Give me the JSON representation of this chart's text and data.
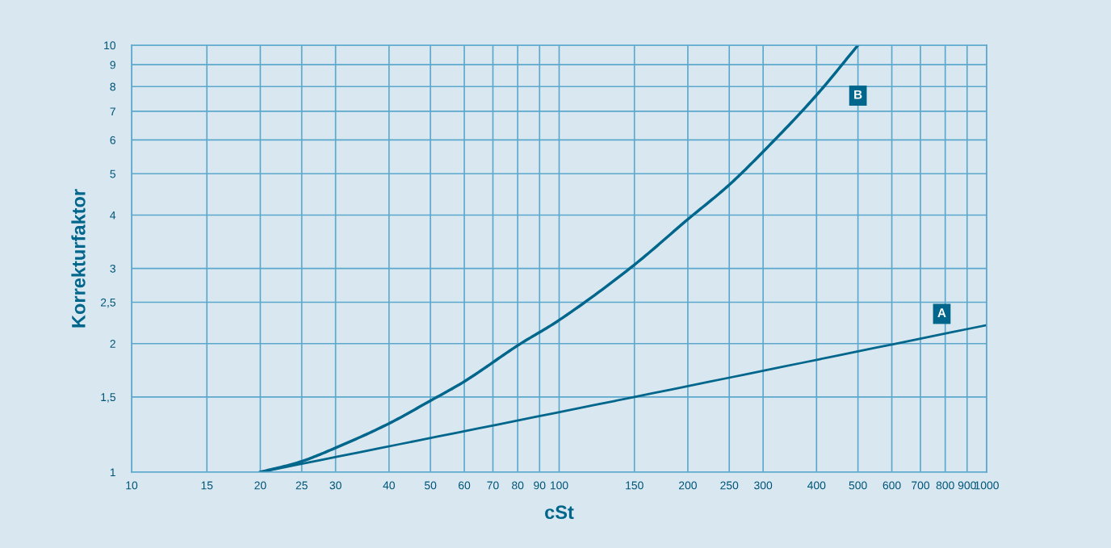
{
  "chart_data": {
    "type": "line",
    "xlabel": "cSt",
    "ylabel": "Korrekturfaktor",
    "log": "xy",
    "grid": true,
    "marker": "none",
    "line_style": "solid",
    "series": [
      {
        "name": "A",
        "color": "#00668c",
        "x": [
          20,
          150,
          1000
        ],
        "values": [
          1,
          1.5,
          2.21
        ]
      },
      {
        "name": "B",
        "color": "#00668c",
        "x": [
          20,
          25,
          30,
          40,
          50,
          60,
          80,
          100,
          150,
          200,
          250,
          300,
          400,
          500
        ],
        "values": [
          1,
          1.06,
          1.14,
          1.3,
          1.47,
          1.63,
          1.98,
          2.27,
          3.06,
          3.91,
          4.71,
          5.63,
          7.64,
          10
        ]
      }
    ],
    "xlim": [
      10,
      1000
    ],
    "ylim": [
      1,
      10
    ],
    "xticks": [
      10,
      15,
      20,
      25,
      30,
      40,
      50,
      60,
      70,
      80,
      90,
      100,
      150,
      200,
      250,
      300,
      400,
      500,
      600,
      700,
      800,
      900,
      1000
    ],
    "yticks": [
      1,
      {
        "value": 1.5,
        "label": "1,5"
      },
      2,
      {
        "value": 2.5,
        "label": "2,5"
      },
      3,
      4,
      5,
      6,
      7,
      8,
      9,
      10
    ]
  }
}
